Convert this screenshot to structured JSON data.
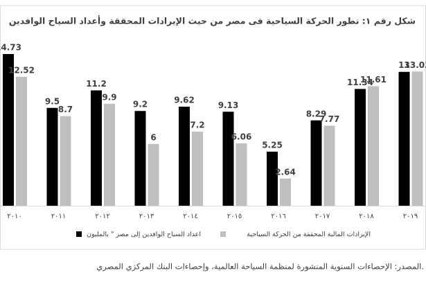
{
  "chart_data": {
    "type": "bar",
    "title": "شكل رقم ١: تطور الحركة السياحية فى مصر من حيث الإيرادات المحققة وأعداد السياح الوافدين",
    "categories": [
      "٢٠١٠",
      "٢٠١١",
      "٢٠١٢",
      "٢٠١٣",
      "٢٠١٤",
      "٢٠١٥",
      "٢٠١٦",
      "٢٠١٧",
      "٢٠١٨",
      "٢٠١٩"
    ],
    "series": [
      {
        "name": "اعداد السياح الوافدين إلى مصر \" بالمليون",
        "color": "#000000",
        "values": [
          14.73,
          9.5,
          11.2,
          9.2,
          9.62,
          9.13,
          5.25,
          8.29,
          11.34,
          13
        ]
      },
      {
        "name": "الإيرادات المالية المحققة من الحركة السياحية",
        "color": "#bfbfbf",
        "values": [
          12.52,
          8.7,
          9.9,
          6,
          7.2,
          6.06,
          2.64,
          7.77,
          11.61,
          13.03
        ]
      }
    ],
    "ylim": [
      0,
      15
    ],
    "source": "المصدر: الإحصاءات السنوية المنشورة لمنظمة السياحة العالمية، وإحصاءات البنك المركزي المصري."
  }
}
